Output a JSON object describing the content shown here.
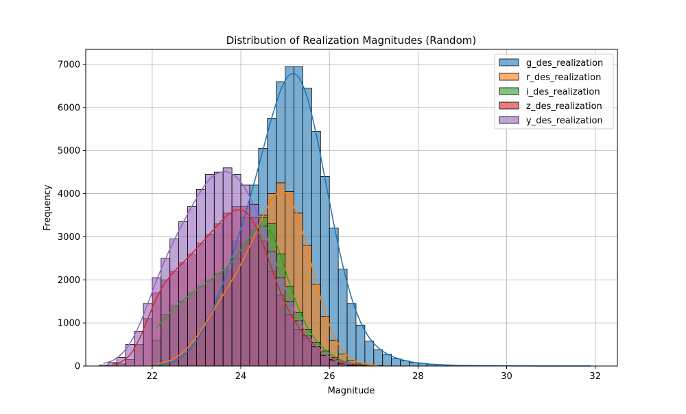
{
  "chart_data": {
    "type": "histogram",
    "title": "Distribution of Realization Magnitudes (Random)",
    "xlabel": "Magnitude",
    "ylabel": "Frequency",
    "xlim": [
      20.5,
      32.5
    ],
    "ylim": [
      0,
      7350
    ],
    "x_ticks": [
      22,
      24,
      26,
      28,
      30,
      32
    ],
    "y_ticks": [
      0,
      1000,
      2000,
      3000,
      4000,
      5000,
      6000,
      7000
    ],
    "grid": true,
    "legend_position": "top-right",
    "bin_width": 0.2,
    "series": [
      {
        "name": "g_des_realization",
        "color": "#1f77b4",
        "bin_start": 22.0,
        "counts": [
          10,
          30,
          80,
          180,
          400,
          700,
          1100,
          1600,
          2200,
          2900,
          3450,
          4200,
          5050,
          5750,
          6600,
          6950,
          6950,
          6450,
          5450,
          4400,
          3200,
          2250,
          1450,
          950,
          580,
          380,
          270,
          170,
          120,
          80,
          60,
          40,
          30,
          20,
          15,
          12,
          10,
          8,
          6,
          5,
          4,
          3,
          3,
          2,
          2,
          2,
          1,
          1,
          1,
          1
        ]
      },
      {
        "name": "r_des_realization",
        "color": "#ff7f0e",
        "bin_start": 22.0,
        "counts": [
          20,
          60,
          150,
          300,
          500,
          800,
          1150,
          1500,
          1800,
          2150,
          2550,
          2950,
          3500,
          4000,
          4250,
          4050,
          3550,
          2800,
          1900,
          1150,
          600,
          280,
          120,
          50,
          20,
          8
        ]
      },
      {
        "name": "i_des_realization",
        "color": "#2ca02c",
        "bin_start": 22.0,
        "counts": [
          600,
          1200,
          1400,
          1500,
          1700,
          1850,
          2000,
          2150,
          2250,
          2500,
          2850,
          3150,
          3450,
          3300,
          2600,
          1850,
          1250,
          850,
          550,
          350,
          200,
          100,
          40,
          15
        ]
      },
      {
        "name": "z_des_realization",
        "color": "#d62728",
        "bin_start": 21.0,
        "counts": [
          20,
          50,
          150,
          500,
          1100,
          1700,
          2000,
          2200,
          2400,
          2600,
          2850,
          3050,
          3300,
          3550,
          3700,
          3700,
          3450,
          2900,
          2200,
          1650,
          1200,
          850,
          650,
          420,
          250,
          150,
          80,
          30,
          10
        ]
      },
      {
        "name": "y_des_realization",
        "color": "#9467bd",
        "bin_start": 20.8,
        "counts": [
          20,
          80,
          200,
          500,
          800,
          1450,
          2050,
          2500,
          2950,
          3350,
          3700,
          4100,
          4450,
          4500,
          4600,
          4450,
          4200,
          3750,
          3250,
          2650,
          2050,
          1500,
          1050,
          700,
          450,
          250,
          120,
          50,
          15
        ]
      }
    ]
  }
}
